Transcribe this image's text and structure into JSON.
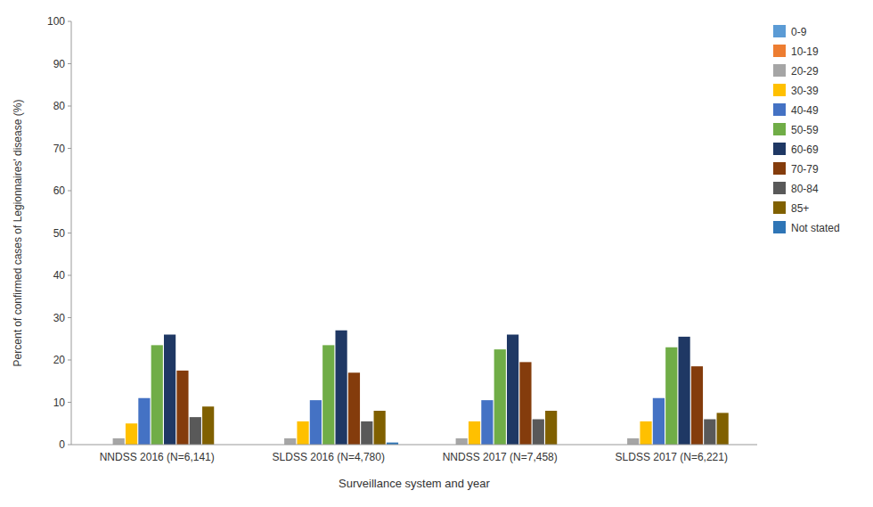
{
  "chart_data": {
    "type": "bar",
    "categories": [
      "NNDSS 2016 (N=6,141)",
      "SLDSS 2016 (N=4,780)",
      "NNDSS 2017 (N=7,458)",
      "SLDSS 2017 (N=6,221)"
    ],
    "series": [
      {
        "name": "0-9",
        "color": "#5B9BD5",
        "values": [
          0.0,
          0.0,
          0.0,
          0.0
        ]
      },
      {
        "name": "10-19",
        "color": "#ED7D31",
        "values": [
          0.0,
          0.0,
          0.0,
          0.0
        ]
      },
      {
        "name": "20-29",
        "color": "#A5A5A5",
        "values": [
          1.5,
          1.5,
          1.5,
          1.5
        ]
      },
      {
        "name": "30-39",
        "color": "#FFC000",
        "values": [
          5.0,
          5.5,
          5.5,
          5.5
        ]
      },
      {
        "name": "40-49",
        "color": "#4472C4",
        "values": [
          11.0,
          10.5,
          10.5,
          11.0
        ]
      },
      {
        "name": "50-59",
        "color": "#70AD47",
        "values": [
          23.5,
          23.5,
          22.5,
          23.0
        ]
      },
      {
        "name": "60-69",
        "color": "#1F3864",
        "values": [
          26.0,
          27.0,
          26.0,
          25.5
        ]
      },
      {
        "name": "70-79",
        "color": "#843C0C",
        "values": [
          17.5,
          17.0,
          19.5,
          18.5
        ]
      },
      {
        "name": "80-84",
        "color": "#595959",
        "values": [
          6.5,
          5.5,
          6.0,
          6.0
        ]
      },
      {
        "name": "85+",
        "color": "#806000",
        "values": [
          9.0,
          8.0,
          8.0,
          7.5
        ]
      },
      {
        "name": "Not stated",
        "color": "#2E75B6",
        "values": [
          0.0,
          0.5,
          0.0,
          0.0
        ]
      }
    ],
    "xlabel": "Surveillance system and year",
    "ylabel": "Percent of confirmed cases of Legionnaires' disease (%)",
    "ylim": [
      0,
      100
    ],
    "yticks": [
      0,
      10,
      20,
      30,
      40,
      50,
      60,
      70,
      80,
      90,
      100
    ],
    "grid": false,
    "legend": "right"
  }
}
